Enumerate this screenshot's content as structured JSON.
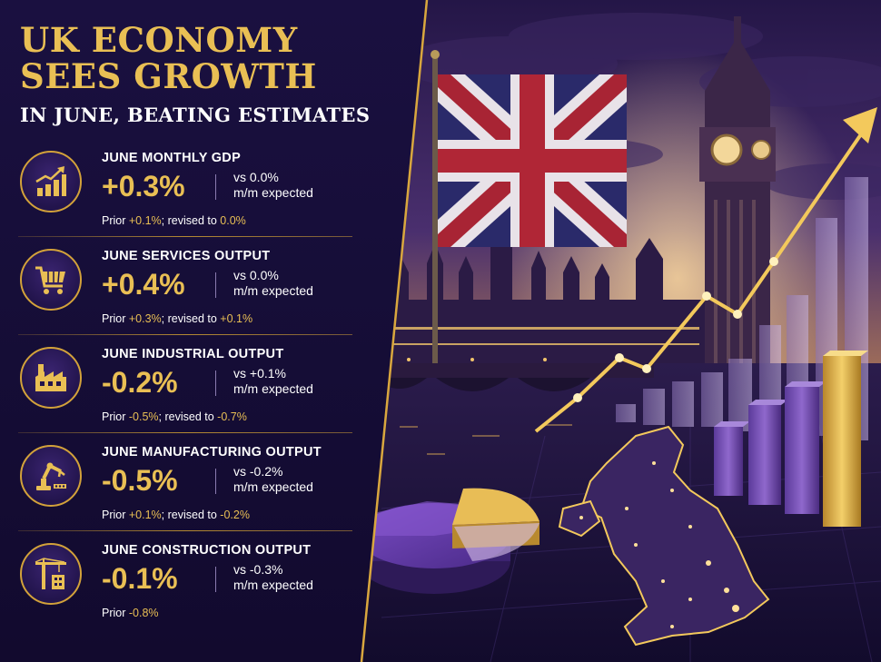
{
  "header": {
    "title_line1": "UK ECONOMY",
    "title_line2": "SEES GROWTH",
    "subtitle": "IN JUNE, BEATING ESTIMATES"
  },
  "stats": [
    {
      "label": "JUNE MONTHLY GDP",
      "value": "+0.3%",
      "vs_line1": "vs 0.0%",
      "vs_line2": "m/m expected",
      "prior_prefix": "Prior ",
      "prior_value": "+0.1%",
      "revised_prefix": "; revised to ",
      "revised_value": "0.0%",
      "icon": "bar-growth-icon"
    },
    {
      "label": "JUNE SERVICES OUTPUT",
      "value": "+0.4%",
      "vs_line1": "vs 0.0%",
      "vs_line2": "m/m expected",
      "prior_prefix": "Prior ",
      "prior_value": "+0.3%",
      "revised_prefix": "; revised to ",
      "revised_value": "+0.1%",
      "icon": "shopping-cart-icon"
    },
    {
      "label": "JUNE INDUSTRIAL OUTPUT",
      "value": "-0.2%",
      "vs_line1": "vs +0.1%",
      "vs_line2": "m/m expected",
      "prior_prefix": "Prior ",
      "prior_value": "-0.5%",
      "revised_prefix": "; revised to ",
      "revised_value": "-0.7%",
      "icon": "factory-icon"
    },
    {
      "label": "JUNE MANUFACTURING OUTPUT",
      "value": "-0.5%",
      "vs_line1": "vs -0.2%",
      "vs_line2": "m/m expected",
      "prior_prefix": "Prior ",
      "prior_value": "+0.1%",
      "revised_prefix": "; revised to ",
      "revised_value": "-0.2%",
      "icon": "robot-arm-icon"
    },
    {
      "label": "JUNE CONSTRUCTION OUTPUT",
      "value": "-0.1%",
      "vs_line1": "vs -0.3%",
      "vs_line2": "m/m expected",
      "prior_prefix": "Prior ",
      "prior_value": "-0.8%",
      "revised_prefix": "",
      "revised_value": "",
      "icon": "crane-icon"
    }
  ],
  "illustration": {
    "elements": [
      "union-jack-flag",
      "big-ben",
      "houses-of-parliament",
      "westminster-bridge",
      "rising-line",
      "bar-chart",
      "pie-chart",
      "uk-map"
    ]
  },
  "colors": {
    "accent": "#e9bf54",
    "background": "#150d36",
    "purple": "#7b4fb8"
  }
}
